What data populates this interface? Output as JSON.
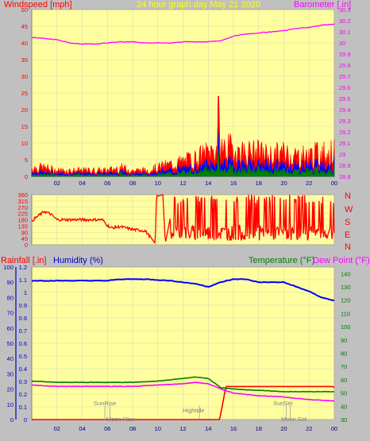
{
  "header": {
    "left_label": "Windspeed [mph]",
    "center_label": "24 hour graph day   May 21 2020",
    "right_label": "Barometer [.in]"
  },
  "bottom_header": {
    "rainfall_label": "Rainfall [.in]",
    "humidity_label": "Humidity (%)",
    "temperature_label": "Temperature (°F)",
    "dewpoint_label": "Dew Point (°F)"
  },
  "compass": [
    "N",
    "W",
    "S",
    "E",
    "N"
  ],
  "annotations": {
    "sunrise": "SunRise",
    "moonrise": "Moon Rise",
    "hightide": "Hightide",
    "sunset": "SunSet",
    "moonset": "Moon Set"
  },
  "colors": {
    "background": "#c0c0c0",
    "plot": "#ffffa0",
    "wind": "#ff0000",
    "wind_avg": "#0000ff",
    "wind_min": "#008000",
    "barometer": "#ff00ff",
    "rain": "#ff0000",
    "humidity": "#0000ff",
    "temperature": "#008000",
    "dewpoint": "#ff00ff"
  },
  "chart_data": [
    {
      "type": "area",
      "title": "24 hour graph day   May 21 2020",
      "x_ticks": [
        "02",
        "04",
        "06",
        "08",
        "10",
        "12",
        "14",
        "16",
        "18",
        "20",
        "22",
        "00"
      ],
      "left_axis": {
        "label": "Windspeed [mph]",
        "range": [
          0,
          50
        ],
        "ticks": [
          0,
          5,
          10,
          15,
          20,
          25,
          30,
          35,
          40,
          45,
          50
        ]
      },
      "right_axis": {
        "label": "Barometer [.in]",
        "range": [
          28.8,
          30.3
        ],
        "ticks": [
          "28.8",
          "28.9",
          "29",
          "29.1",
          "29.2",
          "29.3",
          "29.4",
          "29.5",
          "29.6",
          "29.7",
          "29.8",
          "29.9",
          "30",
          "30.1",
          "30.2",
          "30.3"
        ]
      },
      "series": [
        {
          "name": "Windspeed [mph]",
          "axis": "left",
          "hours": [
            0,
            1,
            2,
            3,
            4,
            5,
            6,
            7,
            8,
            9,
            10,
            11,
            12,
            13,
            14,
            15,
            16,
            17,
            18,
            19,
            20,
            21,
            22,
            23,
            24
          ],
          "values": [
            3,
            3,
            2,
            2,
            2,
            2,
            2,
            3,
            2,
            2,
            3,
            4,
            5,
            6,
            8,
            10,
            9,
            8,
            8,
            7,
            8,
            7,
            7,
            8,
            8
          ],
          "peak": {
            "hour": 14.8,
            "value": 24
          }
        },
        {
          "name": "Barometer [.in]",
          "axis": "right",
          "hours": [
            0,
            1,
            2,
            3,
            4,
            5,
            6,
            7,
            8,
            9,
            10,
            11,
            12,
            13,
            14,
            15,
            16,
            17,
            18,
            19,
            20,
            21,
            22,
            23,
            24
          ],
          "values": [
            30.05,
            30.04,
            30.03,
            30.0,
            29.99,
            29.99,
            30.0,
            30.01,
            30.01,
            30.0,
            30.0,
            30.0,
            30.01,
            30.01,
            30.01,
            30.02,
            30.06,
            30.08,
            30.09,
            30.1,
            30.11,
            30.13,
            30.14,
            30.16,
            30.17
          ]
        }
      ]
    },
    {
      "type": "line",
      "y_axis": {
        "range": [
          0,
          360
        ],
        "ticks": [
          0,
          45,
          90,
          135,
          180,
          225,
          270,
          315,
          360
        ]
      },
      "series": [
        {
          "name": "Wind direction",
          "hours": [
            0,
            0.4,
            1,
            1.5,
            2,
            3,
            4,
            5,
            5.6,
            6,
            6.3,
            7,
            7.5,
            8,
            9,
            9.8,
            9.9,
            10,
            10.4,
            10.6,
            11,
            11.5,
            12,
            13,
            14,
            15,
            16,
            17,
            18,
            19,
            20,
            21,
            22,
            23,
            24
          ],
          "values": [
            170,
            200,
            240,
            220,
            180,
            180,
            180,
            180,
            180,
            140,
            120,
            130,
            120,
            110,
            100,
            10,
            360,
            350,
            360,
            10,
            200,
            60,
            120,
            100,
            60,
            80,
            100,
            90,
            70,
            100,
            80,
            60,
            90,
            70,
            80
          ]
        }
      ]
    },
    {
      "type": "line",
      "x_ticks": [
        "02",
        "04",
        "06",
        "08",
        "10",
        "12",
        "14",
        "16",
        "18",
        "20",
        "22",
        "00"
      ],
      "left_axis": {
        "label": "Rainfall [.in]",
        "range": [
          0,
          1.2
        ],
        "ticks": [
          "0",
          "0.1",
          "0.2",
          "0.3",
          "0.4",
          "0.5",
          "0.6",
          "0.7",
          "0.8",
          "0.9",
          "1",
          "1.1",
          "1.2"
        ]
      },
      "humidity_axis": {
        "label": "Humidity (%)",
        "range": [
          0,
          100
        ],
        "ticks": [
          0,
          10,
          20,
          30,
          40,
          50,
          60,
          70,
          80,
          90,
          100
        ]
      },
      "right_axis": {
        "label": "Temperature (°F)",
        "range": [
          30,
          145
        ],
        "ticks": [
          30,
          40,
          50,
          60,
          70,
          80,
          90,
          100,
          110,
          120,
          130,
          140
        ]
      },
      "series": [
        {
          "name": "Rainfall [.in]",
          "axis": "rain",
          "hours": [
            0,
            14.9,
            15.1,
            15.4,
            23.9,
            24
          ],
          "values": [
            0,
            0,
            0.1,
            0.26,
            0.26,
            0.25
          ]
        },
        {
          "name": "Humidity (%)",
          "axis": "humidity",
          "hours": [
            0,
            2,
            4,
            6,
            7,
            9,
            11,
            12,
            13,
            14,
            15,
            16,
            17,
            18,
            19,
            20,
            21,
            22,
            23,
            24
          ],
          "values": [
            91,
            91,
            91,
            91,
            92,
            92,
            91,
            90,
            89,
            87,
            90,
            92,
            92,
            90,
            90,
            90,
            87,
            84,
            80,
            78
          ]
        },
        {
          "name": "Temperature (°F)",
          "axis": "temp",
          "hours": [
            0,
            2,
            4,
            6,
            8,
            10,
            12,
            13,
            14,
            15,
            16,
            18,
            20,
            22,
            24
          ],
          "values": [
            59,
            58,
            58,
            58,
            58,
            59,
            61,
            62,
            61,
            54,
            53,
            52,
            51,
            51,
            51
          ]
        },
        {
          "name": "Dew Point (°F)",
          "axis": "temp",
          "hours": [
            0,
            2,
            4,
            6,
            8,
            10,
            12,
            13,
            14,
            15,
            16,
            18,
            20,
            22,
            24
          ],
          "values": [
            56,
            55,
            55,
            55,
            55,
            56,
            57,
            58,
            57,
            53,
            50,
            48,
            47,
            45,
            44
          ]
        }
      ],
      "annotations": [
        {
          "text": "SunRise",
          "hour": 5.8
        },
        {
          "text": "Moon Rise",
          "hour": 6.2
        },
        {
          "text": "Hightide",
          "hour": 13.3
        },
        {
          "text": "SunSet",
          "hour": 20.2
        },
        {
          "text": "Moon Set",
          "hour": 20.5
        }
      ]
    }
  ]
}
